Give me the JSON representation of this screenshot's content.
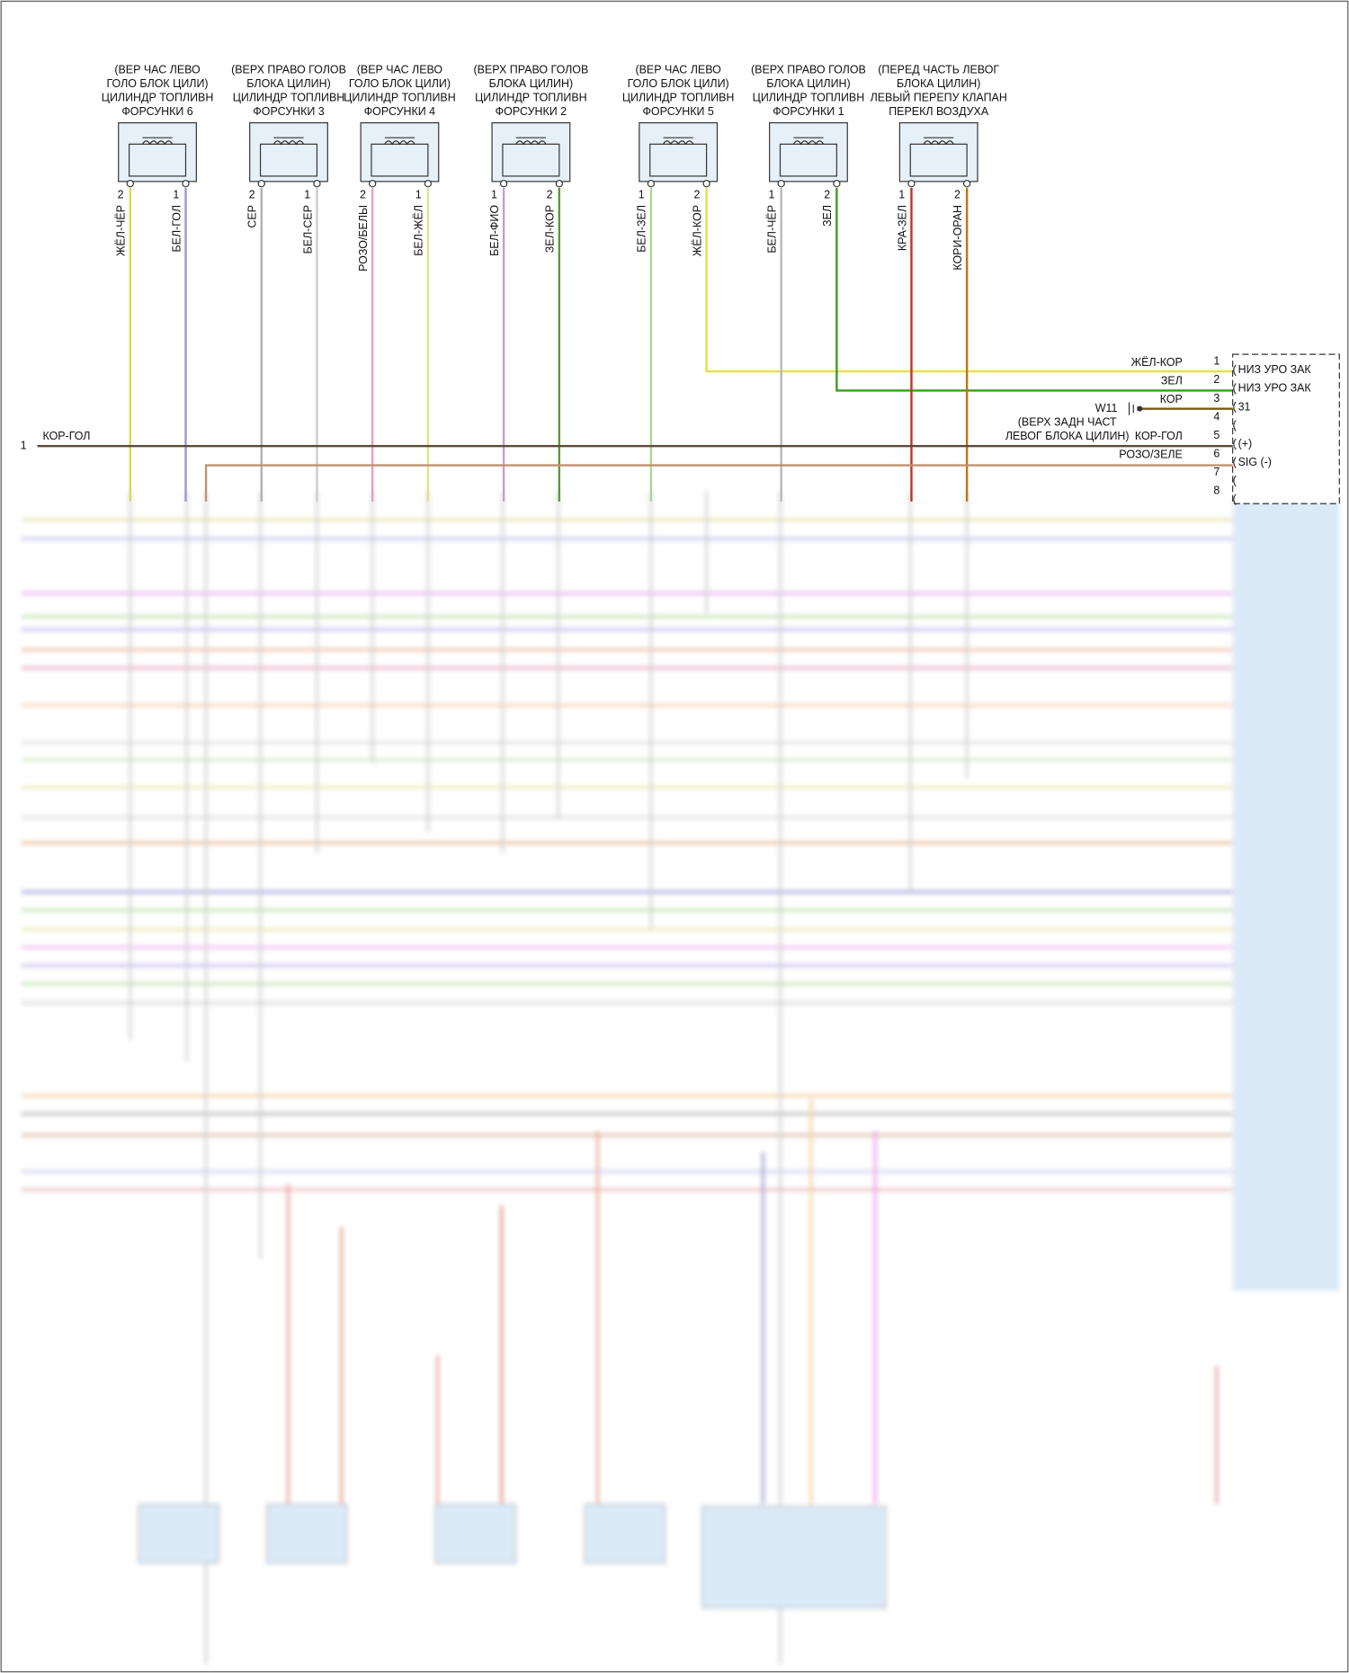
{
  "components": [
    {
      "label": [
        "(ВЕР ЧАС ЛЕВО",
        "ГОЛО БЛОК ЦИЛИ)",
        "ЦИЛИНДР ТОПЛИВН",
        "ФОРСУНКИ 6"
      ],
      "pins": [
        {
          "num": "2",
          "wire": "ЖЁЛ-ЧЁР",
          "color": "#d8d860"
        },
        {
          "num": "1",
          "wire": "БЕЛ-ГОЛ",
          "color": "#9a94d8"
        }
      ]
    },
    {
      "label": [
        "(ВЕРХ ПРАВО ГОЛОВ",
        "БЛОКА ЦИЛИН)",
        "ЦИЛИНДР ТОПЛИВН",
        "ФОРСУНКИ 3"
      ],
      "pins": [
        {
          "num": "2",
          "wire": "СЕР",
          "color": "#b0b0b0"
        },
        {
          "num": "1",
          "wire": "БЕЛ-СЕР",
          "color": "#cccccc"
        }
      ]
    },
    {
      "label": [
        "(ВЕР ЧАС ЛЕВО",
        "ГОЛО БЛОК ЦИЛИ)",
        "ЦИЛИНДР ТОПЛИВН",
        "ФОРСУНКИ 4"
      ],
      "pins": [
        {
          "num": "2",
          "wire": "РОЗО/БЕЛЫ",
          "color": "#e0a0c8"
        },
        {
          "num": "1",
          "wire": "БЕЛ-ЖЁЛ",
          "color": "#e0e090"
        }
      ]
    },
    {
      "label": [
        "(ВЕРХ ПРАВО ГОЛОВ",
        "БЛОКА ЦИЛИН)",
        "ЦИЛИНДР ТОПЛИВН",
        "ФОРСУНКИ 2"
      ],
      "pins": [
        {
          "num": "1",
          "wire": "БЕЛ-ФИО",
          "color": "#c89ad8"
        },
        {
          "num": "2",
          "wire": "ЗЕЛ-КОР",
          "color": "#5a9a30"
        }
      ]
    },
    {
      "label": [
        "(ВЕР ЧАС ЛЕВО",
        "ГОЛО БЛОК ЦИЛИ)",
        "ЦИЛИНДР ТОПЛИВН",
        "ФОРСУНКИ 5"
      ],
      "pins": [
        {
          "num": "1",
          "wire": "БЕЛ-ЗЕЛ",
          "color": "#a8d890"
        },
        {
          "num": "2",
          "wire": "ЖЁЛ-КОР",
          "color": "#e8e040"
        }
      ]
    },
    {
      "label": [
        "(ВЕРХ ПРАВО ГОЛОВ",
        "БЛОКА ЦИЛИН)",
        "ЦИЛИНДР ТОПЛИВН",
        "ФОРСУНКИ 1"
      ],
      "pins": [
        {
          "num": "1",
          "wire": "БЕЛ-ЧЁР",
          "color": "#b8b8b8"
        },
        {
          "num": "2",
          "wire": "ЗЕЛ",
          "color": "#3a9a20"
        }
      ]
    },
    {
      "label": [
        "(ПЕРЕД ЧАСТЬ ЛЕВОГ",
        "БЛОКА ЦИЛИН)",
        "ЛЕВЫЙ ПЕРЕПУ КЛАПАН",
        "ПЕРЕКЛ ВОЗДУХА"
      ],
      "pins": [
        {
          "num": "1",
          "wire": "КРА-ЗЕЛ",
          "color": "#c03020"
        },
        {
          "num": "2",
          "wire": "КОРИ-ОРАН",
          "color": "#b07820"
        }
      ]
    }
  ],
  "connector": {
    "rows": [
      {
        "pin": "1",
        "wire": "ЖЁЛ-КОР",
        "function": "НИЗ УРО ЗАК"
      },
      {
        "pin": "2",
        "wire": "ЗЕЛ",
        "function": "НИЗ УРО ЗАК"
      },
      {
        "pin": "3",
        "wire": "КОР",
        "function": "31"
      },
      {
        "pin": "4"
      },
      {
        "pin": "5",
        "wire": "КОР-ГОЛ",
        "function": "(+)"
      },
      {
        "pin": "6",
        "wire": "РОЗО/ЗЕЛЕ",
        "function": "SIG (-)"
      },
      {
        "pin": "7"
      },
      {
        "pin": "8"
      }
    ]
  },
  "ground": {
    "name": "W11",
    "note": [
      "(ВЕРХ ЗАДН ЧАСТ",
      "ЛЕВОГ БЛОКА ЦИЛИН)"
    ]
  },
  "left_wire": {
    "pin": "1",
    "wire": "КОР-ГОЛ"
  }
}
